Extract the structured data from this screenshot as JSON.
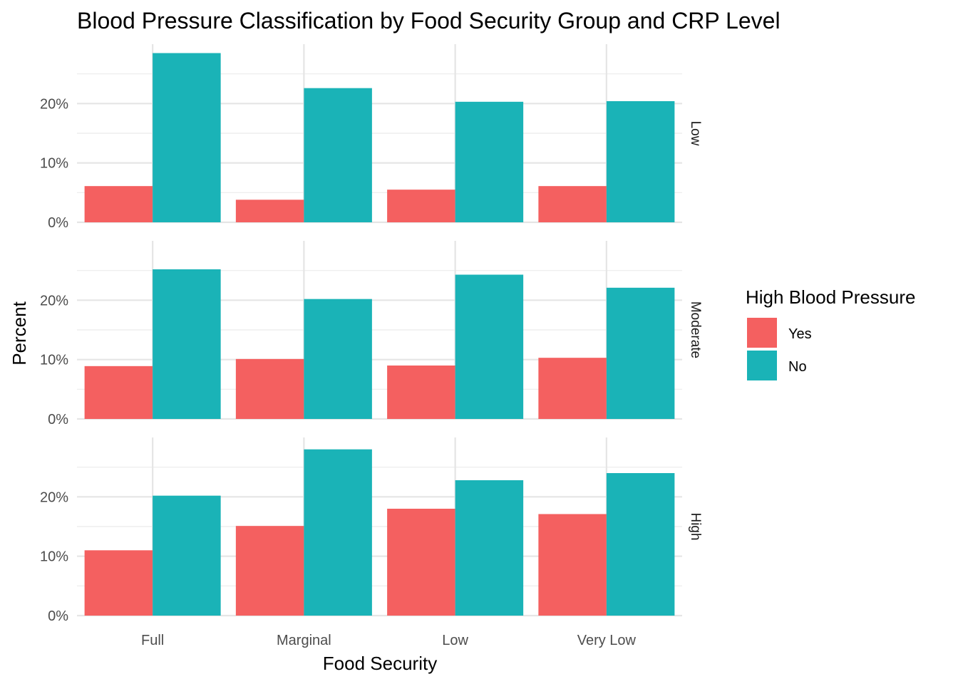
{
  "chart_data": {
    "type": "bar",
    "title": "Blood Pressure Classification by Food Security Group and CRP Level",
    "xlabel": "Food Security",
    "ylabel": "Percent",
    "categories": [
      "Full",
      "Marginal",
      "Low",
      "Very Low"
    ],
    "y_tick_labels": [
      "0%",
      "10%",
      "20%"
    ],
    "ylim": [
      0,
      30
    ],
    "grid": true,
    "legend": {
      "title": "High Blood Pressure",
      "placement": "right",
      "items": [
        {
          "label": "Yes",
          "color": "#F46060"
        },
        {
          "label": "No",
          "color": "#1AB3B7"
        }
      ]
    },
    "facets": [
      {
        "label": "Low",
        "series": [
          {
            "name": "Yes",
            "values": [
              6.1,
              3.8,
              5.5,
              6.1
            ]
          },
          {
            "name": "No",
            "values": [
              28.5,
              22.6,
              20.3,
              20.4
            ]
          }
        ]
      },
      {
        "label": "Moderate",
        "series": [
          {
            "name": "Yes",
            "values": [
              8.9,
              10.1,
              9.0,
              10.3
            ]
          },
          {
            "name": "No",
            "values": [
              25.2,
              20.2,
              24.3,
              22.1
            ]
          }
        ]
      },
      {
        "label": "High",
        "series": [
          {
            "name": "Yes",
            "values": [
              11.0,
              15.1,
              18.0,
              17.1
            ]
          },
          {
            "name": "No",
            "values": [
              20.2,
              28.0,
              22.8,
              24.0
            ]
          }
        ]
      }
    ]
  }
}
